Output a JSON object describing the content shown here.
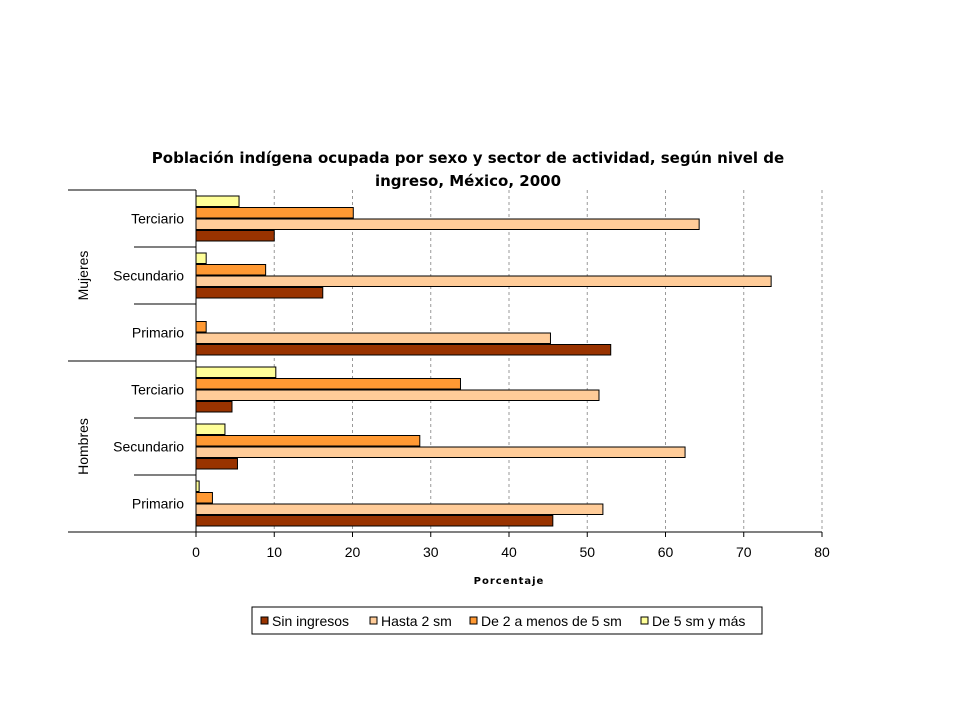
{
  "chart_data": {
    "type": "bar",
    "orientation": "horizontal",
    "title": "Población indígena ocupada por sexo y sector de actividad, según nivel de ingreso, México, 2000",
    "title_lines": [
      "Población indígena ocupada por sexo y sector de actividad, según nivel de",
      "ingreso, México, 2000"
    ],
    "xlabel": "Porcentaje",
    "xlim": [
      0,
      80
    ],
    "xticks": [
      "0",
      "10",
      "20",
      "30",
      "40",
      "50",
      "60",
      "70",
      "80"
    ],
    "grid": "vertical dashed",
    "legend_position": "bottom",
    "groups": [
      "Mujeres",
      "Hombres"
    ],
    "categories": [
      {
        "group": "Mujeres",
        "label": "Terciario"
      },
      {
        "group": "Mujeres",
        "label": "Secundario"
      },
      {
        "group": "Mujeres",
        "label": "Primario"
      },
      {
        "group": "Hombres",
        "label": "Terciario"
      },
      {
        "group": "Hombres",
        "label": "Secundario"
      },
      {
        "group": "Hombres",
        "label": "Primario"
      }
    ],
    "series": [
      {
        "name": "De 5 sm y más",
        "color": "#ffff99",
        "values": [
          5.5,
          1.3,
          0,
          10.2,
          3.7,
          0.4
        ]
      },
      {
        "name": "De 2 a menos de 5 sm",
        "color": "#ff9933",
        "values": [
          20.1,
          8.9,
          1.3,
          33.8,
          28.6,
          2.1
        ]
      },
      {
        "name": "Hasta 2 sm",
        "color": "#ffcc99",
        "values": [
          64.3,
          73.5,
          45.3,
          51.5,
          62.5,
          52.0
        ]
      },
      {
        "name": "Sin ingresos",
        "color": "#993300",
        "values": [
          10.0,
          16.2,
          53.0,
          4.6,
          5.3,
          45.6
        ]
      }
    ],
    "legend_order": [
      "Sin ingresos",
      "Hasta 2 sm",
      "De 2 a menos de 5 sm",
      "De 5 sm y más"
    ]
  }
}
